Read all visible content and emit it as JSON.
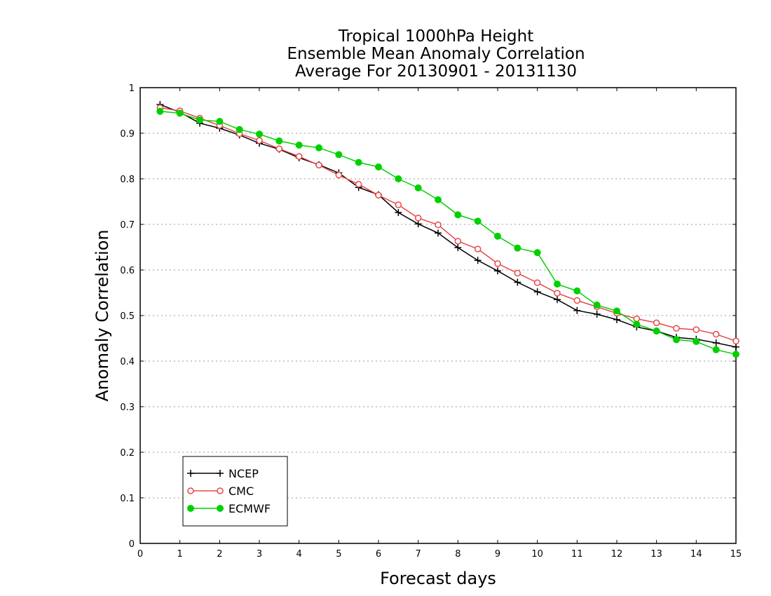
{
  "chart_data": {
    "type": "line",
    "title": [
      "Tropical 1000hPa Height",
      "Ensemble Mean Anomaly Correlation",
      "Average For 20130901 - 20131130"
    ],
    "xlabel": "Forecast days",
    "ylabel": "Anomaly Correlation",
    "xlim": [
      0,
      15
    ],
    "ylim": [
      0,
      1
    ],
    "x_ticks": [
      "0",
      "1",
      "2",
      "3",
      "4",
      "5",
      "6",
      "7",
      "8",
      "9",
      "10",
      "11",
      "12",
      "13",
      "14",
      "15"
    ],
    "y_ticks": [
      "0",
      "0.1",
      "0.2",
      "0.3",
      "0.4",
      "0.5",
      "0.6",
      "0.7",
      "0.8",
      "0.9",
      "1"
    ],
    "grid": "horizontal dotted",
    "legend_position": "bottom-left",
    "x": [
      0.5,
      1,
      1.5,
      2,
      2.5,
      3,
      3.5,
      4,
      4.5,
      5,
      5.5,
      6,
      6.5,
      7,
      7.5,
      8,
      8.5,
      9,
      9.5,
      10,
      10.5,
      11,
      11.5,
      12,
      12.5,
      13,
      13.5,
      14,
      14.5,
      15
    ],
    "series": [
      {
        "name": "NCEP",
        "color": "#000000",
        "marker": "plus",
        "values": [
          0.963,
          0.946,
          0.922,
          0.911,
          0.896,
          0.878,
          0.865,
          0.846,
          0.831,
          0.813,
          0.781,
          0.765,
          0.726,
          0.701,
          0.681,
          0.649,
          0.621,
          0.598,
          0.573,
          0.552,
          0.535,
          0.511,
          0.503,
          0.491,
          0.475,
          0.466,
          0.452,
          0.448,
          0.44,
          0.431
        ]
      },
      {
        "name": "CMC",
        "color": "#e8474a",
        "marker": "open-circle",
        "values": [
          0.956,
          0.949,
          0.933,
          0.917,
          0.899,
          0.884,
          0.866,
          0.849,
          0.83,
          0.808,
          0.788,
          0.764,
          0.743,
          0.714,
          0.699,
          0.663,
          0.646,
          0.614,
          0.593,
          0.572,
          0.549,
          0.533,
          0.519,
          0.505,
          0.493,
          0.484,
          0.472,
          0.469,
          0.459,
          0.444
        ]
      },
      {
        "name": "ECMWF",
        "color": "#00d000",
        "marker": "filled-circle",
        "values": [
          0.948,
          0.944,
          0.929,
          0.926,
          0.908,
          0.898,
          0.883,
          0.874,
          0.868,
          0.853,
          0.836,
          0.826,
          0.8,
          0.78,
          0.754,
          0.721,
          0.707,
          0.674,
          0.648,
          0.638,
          0.569,
          0.554,
          0.523,
          0.51,
          0.481,
          0.466,
          0.447,
          0.443,
          0.425,
          0.415
        ]
      }
    ]
  }
}
